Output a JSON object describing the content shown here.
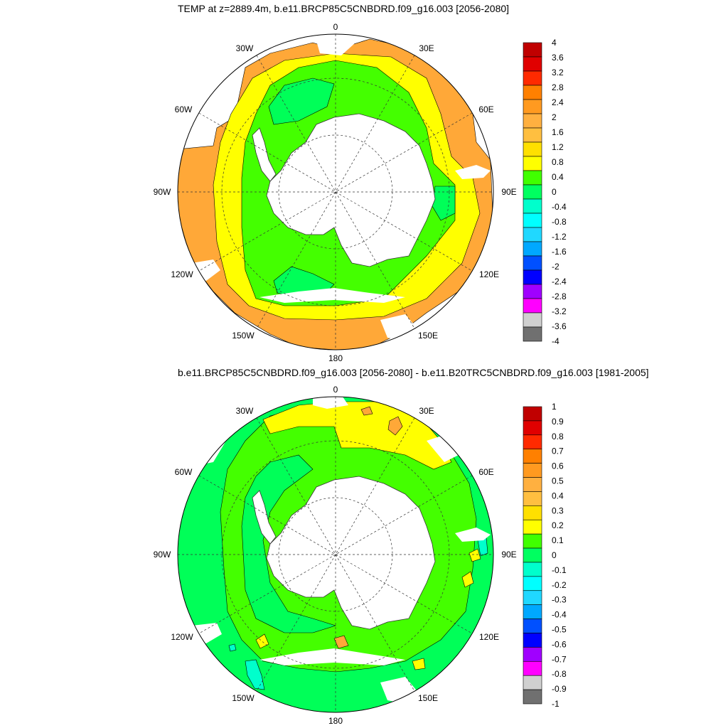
{
  "panels": [
    {
      "title": "TEMP at z=2889.4m, b.e11.BRCP85C5CNBDRD.f09_g16.003 [2056-2080]",
      "lon_labels": [
        "0",
        "30E",
        "60E",
        "90E",
        "120E",
        "150E",
        "180",
        "150W",
        "120W",
        "90W",
        "60W",
        "30W"
      ],
      "colorbar": {
        "labels": [
          "4",
          "3.6",
          "3.2",
          "2.8",
          "2.4",
          "2",
          "1.6",
          "1.2",
          "0.8",
          "0.4",
          "0",
          "-0.4",
          "-0.8",
          "-1.2",
          "-1.6",
          "-2",
          "-2.4",
          "-2.8",
          "-3.2",
          "-3.6",
          "-4"
        ],
        "colors": [
          "#c00000",
          "#e00000",
          "#ff2a00",
          "#ff8000",
          "#ff9a20",
          "#ffb040",
          "#ffbf40",
          "#ffe000",
          "#ffff00",
          "#40ff00",
          "#00ff60",
          "#00ffcc",
          "#00ffff",
          "#20d8ff",
          "#00a8ff",
          "#0050ff",
          "#0000ff",
          "#a000ff",
          "#ff00ff",
          "#d0d0d0",
          "#707070"
        ]
      }
    },
    {
      "title": "b.e11.BRCP85C5CNBDRD.f09_g16.003 [2056-2080] - b.e11.B20TRC5CNBDRD.f09_g16.003 [1981-2005]",
      "lon_labels": [
        "0",
        "30E",
        "60E",
        "90E",
        "120E",
        "150E",
        "180",
        "150W",
        "120W",
        "90W",
        "60W",
        "30W"
      ],
      "colorbar": {
        "labels": [
          "1",
          "0.9",
          "0.8",
          "0.7",
          "0.6",
          "0.5",
          "0.4",
          "0.3",
          "0.2",
          "0.1",
          "0",
          "-0.1",
          "-0.2",
          "-0.3",
          "-0.4",
          "-0.5",
          "-0.6",
          "-0.7",
          "-0.8",
          "-0.9",
          "-1"
        ],
        "colors": [
          "#c00000",
          "#e00000",
          "#ff2a00",
          "#ff8000",
          "#ff9a20",
          "#ffb040",
          "#ffbf40",
          "#ffe000",
          "#ffff00",
          "#40ff00",
          "#00ff60",
          "#00ffcc",
          "#00ffff",
          "#20d8ff",
          "#00a8ff",
          "#0050ff",
          "#0000ff",
          "#a000ff",
          "#ff00ff",
          "#d0d0d0",
          "#707070"
        ]
      }
    }
  ],
  "fill_colors": {
    "orange": "#ffa838",
    "yellow": "#ffff00",
    "green": "#44ff00",
    "bright_green": "#00ff58",
    "cyan": "#00ffcc"
  }
}
